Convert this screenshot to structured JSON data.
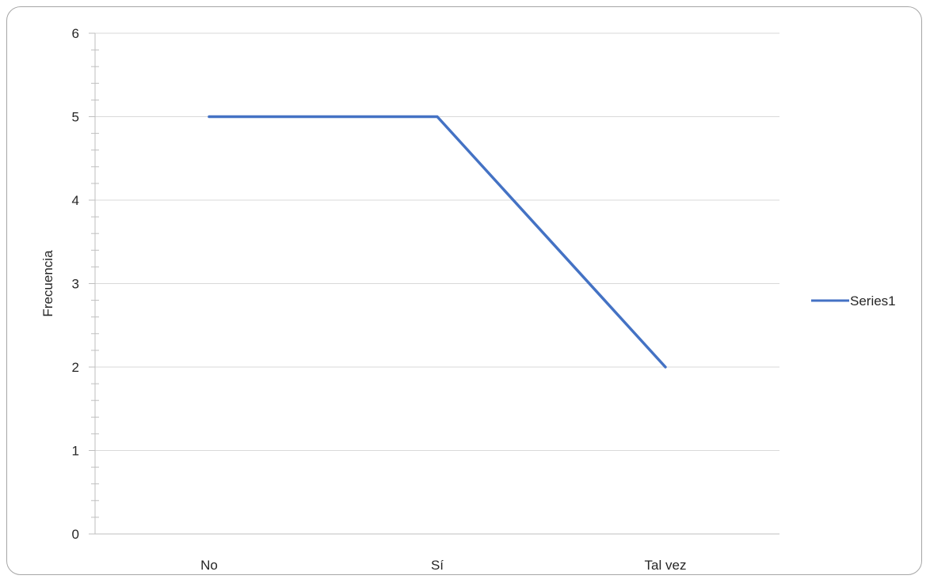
{
  "chart_data": {
    "type": "line",
    "categories": [
      "No",
      "Sí",
      "Tal vez"
    ],
    "series": [
      {
        "name": "Series1",
        "values": [
          5,
          5,
          2
        ],
        "color": "#4472c4"
      }
    ],
    "title": "",
    "xlabel": "",
    "ylabel": "Frecuencia",
    "ylim": [
      0,
      6
    ],
    "yticks": [
      "0",
      "1",
      "2",
      "3",
      "4",
      "5",
      "6"
    ],
    "grid": true,
    "legend_position": "right"
  }
}
